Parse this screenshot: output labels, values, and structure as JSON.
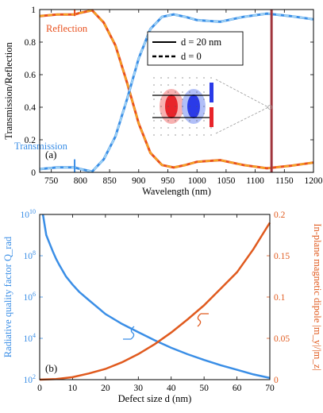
{
  "colors": {
    "transmission": "#3a8ee6",
    "reflection": "#e8501e",
    "dashed": "#f5a623",
    "marker": "#a0343c",
    "blue": "#3a8ee6",
    "orange": "#e05a1e"
  },
  "chart_data": [
    {
      "type": "line",
      "panel_label": "(a)",
      "xlabel": "Wavelength (nm)",
      "ylabel": "Transmission/Reflection",
      "xlim": [
        730,
        1200
      ],
      "ylim": [
        0,
        1
      ],
      "x_ticks": [
        "750",
        "800",
        "850",
        "900",
        "950",
        "1000",
        "1050",
        "1100",
        "1150",
        "1200"
      ],
      "y_ticks": [
        "0",
        "0.2",
        "0.4",
        "0.6",
        "0.8",
        "1"
      ],
      "grid": false,
      "legend": {
        "position": "top-right",
        "entries": [
          "d = 20 nm",
          "d = 0"
        ]
      },
      "annotations": {
        "reflection": "Reflection",
        "transmission": "Transmission"
      },
      "marker_wavelength": 1128,
      "series": [
        {
          "name": "Transmission",
          "x": [
            730,
            760,
            790,
            800,
            820,
            840,
            860,
            880,
            900,
            920,
            940,
            960,
            980,
            1000,
            1040,
            1080,
            1120,
            1160,
            1200
          ],
          "y": [
            0.02,
            0.03,
            0.03,
            0.02,
            0.005,
            0.08,
            0.22,
            0.45,
            0.7,
            0.88,
            0.955,
            0.97,
            0.955,
            0.935,
            0.925,
            0.955,
            0.975,
            0.96,
            0.94
          ]
        },
        {
          "name": "Reflection",
          "x": [
            730,
            760,
            790,
            800,
            820,
            840,
            860,
            880,
            900,
            920,
            940,
            960,
            980,
            1000,
            1040,
            1080,
            1120,
            1160,
            1200
          ],
          "y": [
            0.96,
            0.97,
            0.97,
            0.98,
            0.995,
            0.92,
            0.78,
            0.55,
            0.3,
            0.12,
            0.045,
            0.03,
            0.045,
            0.065,
            0.075,
            0.045,
            0.025,
            0.04,
            0.06
          ]
        }
      ]
    },
    {
      "type": "line",
      "panel_label": "(b)",
      "xlabel": "Defect size d (nm)",
      "ylabel_left": "Radiative quality factor Q_rad",
      "ylabel_right": "In-plane magnetic dipole |m_y|/|m_z|",
      "xlim": [
        0,
        70
      ],
      "ylim_left": [
        100,
        10000000000
      ],
      "yscale_left": "log",
      "ylim_right": [
        0,
        0.2
      ],
      "x_ticks": [
        "0",
        "10",
        "20",
        "30",
        "40",
        "50",
        "60",
        "70"
      ],
      "y_ticks_left": [
        "10^2",
        "10^4",
        "10^6",
        "10^8",
        "10^10"
      ],
      "y_ticks_right": [
        "0",
        "0.05",
        "0.1",
        "0.15",
        "0.2"
      ],
      "series": [
        {
          "name": "Q_rad",
          "axis": "left",
          "x": [
            1,
            2,
            3,
            4,
            5,
            6,
            8,
            10,
            12,
            15,
            20,
            25,
            30,
            35,
            40,
            45,
            50,
            55,
            60,
            65,
            70
          ],
          "y": [
            10000000000,
            1000000000,
            400000000,
            160000000,
            70000000,
            35000000,
            10000000,
            4000000,
            1800000,
            700000,
            150000,
            50000,
            20000,
            8000,
            3500,
            1700,
            900,
            500,
            300,
            180,
            120
          ]
        },
        {
          "name": "|m_y|/|m_z|",
          "axis": "right",
          "x": [
            0,
            5,
            10,
            15,
            20,
            25,
            30,
            35,
            40,
            45,
            50,
            55,
            60,
            65,
            70
          ],
          "y": [
            0,
            0.0008,
            0.003,
            0.0075,
            0.013,
            0.021,
            0.031,
            0.043,
            0.057,
            0.073,
            0.09,
            0.11,
            0.13,
            0.158,
            0.19
          ]
        }
      ]
    }
  ]
}
